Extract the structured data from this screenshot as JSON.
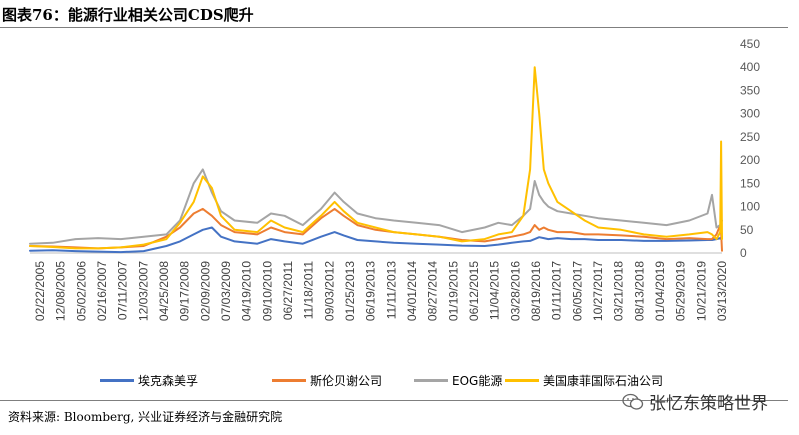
{
  "title": "图表76：能源行业相关公司CDS爬升",
  "source": "资料来源: Bloomberg, 兴业证券经济与金融研究院",
  "watermark": {
    "text": "张忆东策略世界",
    "icon": "wechat-icon"
  },
  "chart_data": {
    "type": "line",
    "title": "",
    "xlabel": "",
    "ylabel": "",
    "ylim": [
      0,
      450
    ],
    "yticks": [
      0,
      50,
      100,
      150,
      200,
      250,
      300,
      350,
      400,
      450
    ],
    "yaxis_position": "right",
    "grid": false,
    "legend": "bottom",
    "xtick_labels": [
      "02/22/2005",
      "12/08/2005",
      "05/02/2006",
      "02/16/2007",
      "07/11/2007",
      "12/03/2007",
      "04/25/2008",
      "09/17/2008",
      "02/09/2009",
      "07/03/2009",
      "04/19/2010",
      "09/10/2010",
      "06/27/2011",
      "11/18/2011",
      "09/03/2012",
      "01/25/2013",
      "06/19/2013",
      "11/11/2013",
      "04/01/2014",
      "08/27/2014",
      "01/19/2015",
      "06/12/2015",
      "11/04/2015",
      "03/28/2016",
      "08/19/2016",
      "01/11/2017",
      "06/05/2017",
      "10/27/2017",
      "03/21/2018",
      "08/13/2018",
      "01/04/2019",
      "05/29/2019",
      "10/21/2019",
      "03/13/2020"
    ],
    "x": [
      2005.0,
      2005.5,
      2006.0,
      2006.5,
      2007.0,
      2007.5,
      2008.0,
      2008.3,
      2008.6,
      2008.8,
      2009.0,
      2009.2,
      2009.5,
      2010.0,
      2010.3,
      2010.6,
      2011.0,
      2011.4,
      2011.7,
      2011.9,
      2012.2,
      2012.6,
      2013.0,
      2013.5,
      2014.0,
      2014.5,
      2015.0,
      2015.3,
      2015.6,
      2015.85,
      2016.0,
      2016.1,
      2016.2,
      2016.3,
      2016.4,
      2016.6,
      2016.9,
      2017.2,
      2017.5,
      2018.0,
      2018.5,
      2019.0,
      2019.5,
      2019.9,
      2020.0,
      2020.1,
      2020.18,
      2020.2,
      2020.22
    ],
    "series": [
      {
        "name": "埃克森美孚",
        "color": "#4472c4",
        "values": [
          5,
          6,
          4,
          3,
          2,
          4,
          15,
          25,
          40,
          50,
          55,
          35,
          25,
          20,
          30,
          25,
          20,
          35,
          45,
          38,
          28,
          25,
          22,
          20,
          18,
          16,
          15,
          18,
          22,
          25,
          26,
          30,
          34,
          32,
          30,
          32,
          30,
          30,
          28,
          28,
          26,
          26,
          27,
          28,
          28,
          30,
          32,
          30,
          35
        ]
      },
      {
        "name": "斯伦贝谢公司",
        "color": "#ed7d31",
        "values": [
          15,
          14,
          12,
          10,
          12,
          15,
          35,
          55,
          85,
          95,
          80,
          60,
          45,
          40,
          55,
          45,
          40,
          75,
          95,
          80,
          60,
          50,
          45,
          40,
          35,
          28,
          25,
          30,
          35,
          40,
          45,
          60,
          50,
          55,
          50,
          45,
          45,
          40,
          40,
          38,
          35,
          30,
          32,
          30,
          30,
          40,
          60,
          45,
          5
        ]
      },
      {
        "name": "EOG能源",
        "color": "#a5a5a5",
        "values": [
          20,
          22,
          30,
          32,
          30,
          35,
          40,
          70,
          150,
          180,
          130,
          90,
          70,
          65,
          85,
          80,
          60,
          95,
          130,
          110,
          85,
          75,
          70,
          65,
          60,
          45,
          55,
          65,
          60,
          80,
          95,
          155,
          125,
          110,
          100,
          90,
          85,
          80,
          75,
          70,
          65,
          60,
          70,
          85,
          125,
          55,
          60,
          65,
          70
        ]
      },
      {
        "name": "美国康菲国际石油公司",
        "color": "#ffc000",
        "values": [
          15,
          13,
          10,
          10,
          12,
          18,
          30,
          65,
          110,
          165,
          140,
          80,
          50,
          45,
          70,
          55,
          45,
          80,
          110,
          90,
          65,
          55,
          45,
          40,
          35,
          25,
          30,
          40,
          45,
          80,
          180,
          400,
          300,
          180,
          150,
          110,
          90,
          70,
          55,
          50,
          40,
          35,
          40,
          45,
          40,
          30,
          45,
          240,
          30
        ]
      }
    ]
  }
}
